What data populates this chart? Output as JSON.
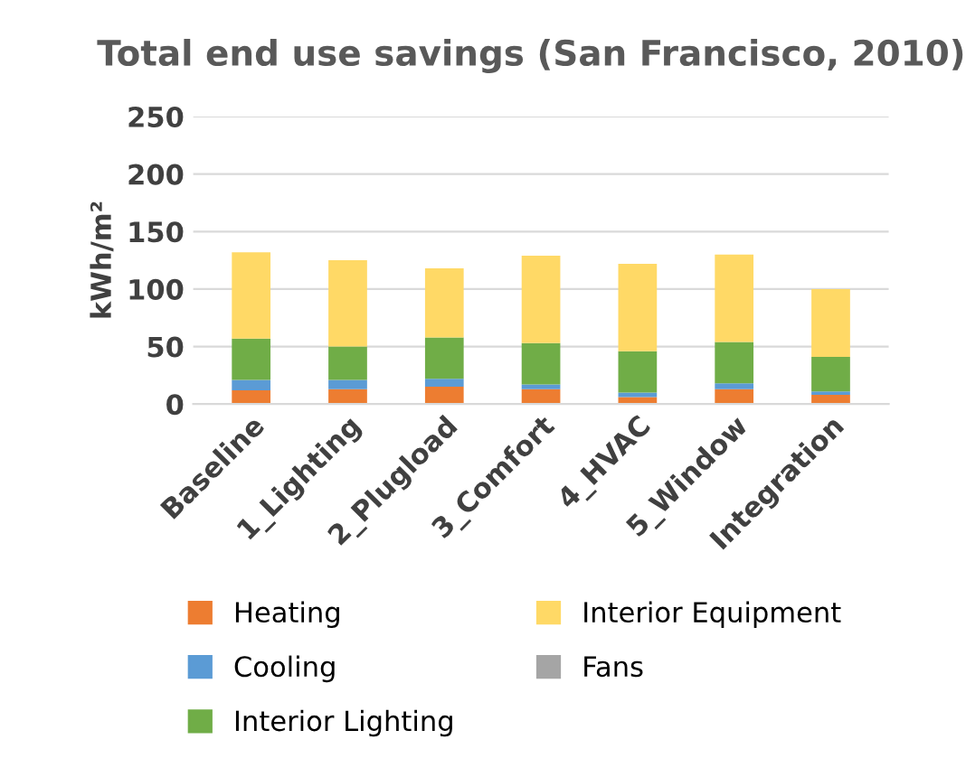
{
  "chart_data": {
    "type": "bar",
    "stacked": true,
    "title": "Total end use savings (San Francisco, 2010)",
    "ylabel": "kWh/m²",
    "categories": [
      "Baseline",
      "1_Lighting",
      "2_Plugload",
      "3_Comfort",
      "4_HVAC",
      "5_Window",
      "Integration"
    ],
    "series": [
      {
        "name": "Heating",
        "color": "#ed7d31",
        "values": [
          12,
          13,
          15,
          13,
          6,
          13,
          8
        ]
      },
      {
        "name": "Cooling",
        "color": "#5b9bd5",
        "values": [
          9,
          8,
          7,
          4,
          4,
          5,
          3
        ]
      },
      {
        "name": "Interior Lighting",
        "color": "#70ad47",
        "values": [
          36,
          29,
          36,
          36,
          36,
          36,
          30
        ]
      },
      {
        "name": "Interior Equipment",
        "color": "#ffd966",
        "values": [
          75,
          75,
          60,
          76,
          76,
          76,
          59
        ]
      },
      {
        "name": "Fans",
        "color": "#a5a5a5",
        "values": [
          0,
          0,
          0,
          0,
          0,
          0,
          0
        ]
      }
    ],
    "ylim": [
      0,
      250
    ],
    "yticks": [
      0,
      50,
      100,
      150,
      200,
      250
    ],
    "grid": "y",
    "legend": "bottom"
  }
}
